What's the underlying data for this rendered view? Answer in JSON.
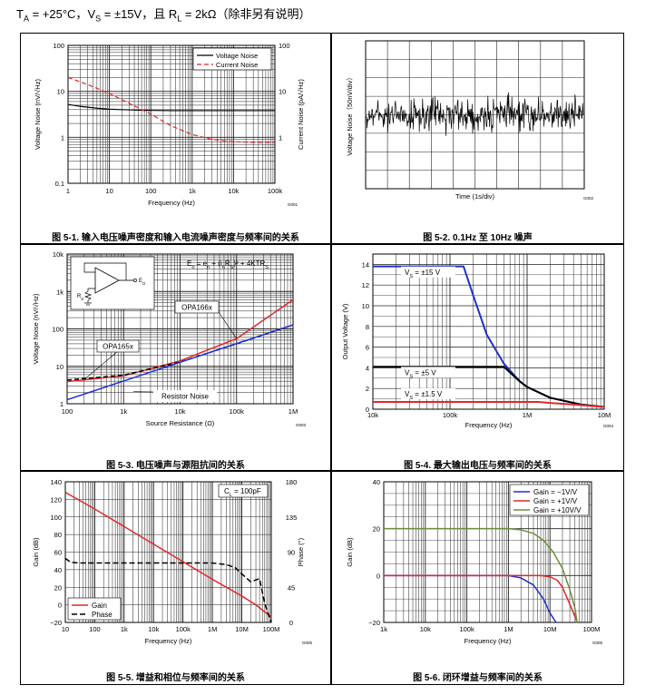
{
  "header": {
    "ta_sym": "T",
    "ta_sub": "A",
    "ta_val": " = +25°C，",
    "vs_sym": "V",
    "vs_sub": "S",
    "vs_val": " = ±15V，且 ",
    "rl_sym": "R",
    "rl_sub": "L",
    "rl_val": " = 2kΩ（除非另有说明）"
  },
  "chart_data": [
    {
      "id": "fig1",
      "type": "line",
      "caption": "图 5-1. 输入电压噪声密度和输入电流噪声密度与频率间的关系",
      "xlabel": "Frequency (Hz)",
      "ylabel": "Voltage Noise (nV/√Hz)",
      "y2label": "Current Noise (pA/√Hz)",
      "xscale": "log",
      "xlim": [
        1,
        100000
      ],
      "yscale": "log",
      "ylim": [
        0.1,
        100
      ],
      "xticks": [
        "1",
        "10",
        "100",
        "1k",
        "10k",
        "100k"
      ],
      "yticks": [
        "0.1",
        "1",
        "10",
        "100"
      ],
      "y2ticks": [
        "1",
        "10",
        "100"
      ],
      "code": "G001",
      "series": [
        {
          "name": "Voltage Noise",
          "color": "#000000",
          "dash": "",
          "x": [
            1,
            2,
            5,
            10,
            20,
            50,
            100,
            300,
            1000,
            10000,
            100000
          ],
          "y": [
            5.2,
            4.7,
            4.3,
            4.1,
            4.0,
            3.9,
            3.85,
            3.8,
            3.8,
            3.8,
            3.8
          ]
        },
        {
          "name": "Current Noise",
          "color": "#e0282a",
          "dash": "5,3",
          "x": [
            1,
            3,
            10,
            30,
            100,
            300,
            1000,
            3000,
            10000,
            30000,
            100000
          ],
          "y": [
            20,
            14,
            9,
            5.5,
            3.2,
            1.8,
            1.15,
            0.9,
            0.8,
            0.78,
            0.78
          ]
        }
      ]
    },
    {
      "id": "fig2",
      "type": "line",
      "caption": "图 5-2. 0.1Hz 至 10Hz 噪声",
      "xlabel": "Time (1s/div)",
      "ylabel": "Voltage Noise（50nV/div）",
      "xlim": [
        0,
        10
      ],
      "ylim": [
        -4,
        4
      ],
      "code": "G002",
      "series": [
        {
          "name": "Noise",
          "color": "#000000",
          "noise_span_x": [
            0,
            10
          ],
          "noise_amplitude_div": 0.8
        }
      ]
    },
    {
      "id": "fig3",
      "type": "line",
      "caption": "图 5-3. 电压噪声与源阻抗间的关系",
      "xlabel": "Source Resistance (Ω)",
      "ylabel": "Voltage Noise (nV/√Hz)",
      "xscale": "log",
      "xlim": [
        100,
        1000000
      ],
      "yscale": "log",
      "ylim": [
        1,
        10000
      ],
      "xticks": [
        "100",
        "1k",
        "10k",
        "100k",
        "1M"
      ],
      "yticks": [
        "1",
        "10",
        "100",
        "1k",
        "10k"
      ],
      "code": "G003",
      "equation": {
        "lead": "E",
        "sub1": "o",
        "mid1": " = e",
        "sub2": "n",
        "mid2": " + (i",
        "sub3": "n",
        "mid3": "R",
        "sub4": "S",
        "tail": ")² + 4KTR",
        "sub5": "S"
      },
      "schematic_labels": {
        "rs": "R",
        "rs_sub": "S",
        "eo": "E",
        "eo_sub": "O"
      },
      "annotations": [
        "OPA166x",
        "OPA165x",
        "Resistor Noise"
      ],
      "series": [
        {
          "name": "OPA166x",
          "color": "#e0282a",
          "dash": "",
          "x": [
            100,
            1000,
            10000,
            100000,
            1000000
          ],
          "y": [
            3.9,
            5.6,
            14,
            55,
            600
          ]
        },
        {
          "name": "OPA165x",
          "color": "#000000",
          "dash": "5,3",
          "x": [
            100,
            1000,
            10000,
            100000,
            1000000
          ],
          "y": [
            4.3,
            5.8,
            13,
            40,
            128
          ]
        },
        {
          "name": "Resistor Noise",
          "color": "#1f2fd0",
          "dash": "",
          "x": [
            100,
            1000000
          ],
          "y": [
            1.28,
            128
          ]
        }
      ]
    },
    {
      "id": "fig4",
      "type": "line",
      "caption": "图 5-4. 最大输出电压与频率间的关系",
      "xlabel": "Frequency (Hz)",
      "ylabel": "Output Voltage (V)",
      "xscale": "log",
      "xlim": [
        10000,
        10000000
      ],
      "ylim": [
        0,
        15
      ],
      "xticks": [
        "10k",
        "100k",
        "1M",
        "10M"
      ],
      "yticks": [
        "0",
        "2",
        "4",
        "6",
        "8",
        "10",
        "12",
        "14"
      ],
      "code": "G004",
      "series": [
        {
          "name": "VS = ±15 V",
          "color": "#1f2fd0",
          "x": [
            10000,
            150000,
            200000,
            300000,
            500000,
            800000,
            1000000,
            2000000,
            5000000,
            10000000
          ],
          "y": [
            13.8,
            13.8,
            11,
            7.2,
            4.4,
            2.7,
            2.15,
            1.1,
            0.45,
            0.22
          ]
        },
        {
          "name": "VS = ±5 V",
          "color": "#000000",
          "x": [
            10000,
            500000,
            800000,
            1000000,
            2000000,
            5000000,
            10000000
          ],
          "y": [
            4.1,
            4.1,
            2.7,
            2.15,
            1.1,
            0.45,
            0.22
          ]
        },
        {
          "name": "VS = ±1.5 V",
          "color": "#e0282a",
          "x": [
            10000,
            1400000,
            2000000,
            5000000,
            10000000
          ],
          "y": [
            0.7,
            0.7,
            0.6,
            0.4,
            0.22
          ]
        }
      ],
      "labels": [
        {
          "sym": "V",
          "sub": "S",
          "text": " = ±15 V"
        },
        {
          "sym": "V",
          "sub": "S",
          "text": " = ±5 V"
        },
        {
          "sym": "V",
          "sub": "S",
          "text": " = ±1.5 V"
        }
      ]
    },
    {
      "id": "fig5",
      "type": "line",
      "caption": "图 5-5. 增益和相位与频率间的关系",
      "xlabel": "Frequency (Hz)",
      "ylabel": "Gain (dB)",
      "y2label": "Phase (°)",
      "xscale": "log",
      "xlim": [
        10,
        100000000
      ],
      "ylim": [
        -20,
        140
      ],
      "y2lim": [
        0,
        180
      ],
      "xticks": [
        "10",
        "100",
        "1k",
        "10k",
        "100k",
        "1M",
        "10M",
        "100M"
      ],
      "yticks": [
        "−20",
        "0",
        "20",
        "40",
        "60",
        "80",
        "100",
        "120",
        "140"
      ],
      "y2ticks": [
        "0",
        "45",
        "90",
        "135",
        "180"
      ],
      "code": "G005",
      "note": {
        "sym": "C",
        "sub": "L",
        "text": " = 100pF"
      },
      "series": [
        {
          "name": "Gain",
          "color": "#e0282a",
          "dash": "",
          "x": [
            10,
            100,
            1000,
            10000,
            100000,
            1000000,
            10000000,
            30000000,
            100000000
          ],
          "y": [
            128,
            109,
            89,
            69,
            49,
            29,
            10,
            0,
            -14
          ]
        },
        {
          "name": "Phase",
          "color": "#000000",
          "dash": "6,3",
          "axis": "y2",
          "x": [
            10,
            15,
            30,
            100,
            1000,
            100000,
            1000000,
            3000000,
            6000000,
            10000000,
            20000000,
            40000000,
            60000000,
            100000000
          ],
          "y": [
            82,
            77,
            76,
            76,
            76,
            76,
            76,
            74,
            70,
            62,
            52,
            56,
            24,
            0
          ]
        }
      ]
    },
    {
      "id": "fig6",
      "type": "line",
      "caption": "图 5-6. 闭环增益与频率间的关系",
      "xlabel": "Frequency (Hz)",
      "ylabel": "Gain (dB)",
      "xscale": "log",
      "xlim": [
        1000,
        100000000
      ],
      "ylim": [
        -20,
        40
      ],
      "xticks": [
        "1k",
        "10k",
        "100k",
        "1M",
        "10M",
        "100M"
      ],
      "yticks": [
        "−20",
        "0",
        "20",
        "40"
      ],
      "code": "G006",
      "series": [
        {
          "name": "Gain = −1V/V",
          "color": "#1f2fd0",
          "x": [
            1000,
            1000000,
            2000000,
            4000000,
            7000000,
            10000000,
            14000000
          ],
          "y": [
            0,
            0,
            -1,
            -4,
            -10,
            -16,
            -20
          ]
        },
        {
          "name": "Gain = +1V/V",
          "color": "#e0282a",
          "x": [
            1000,
            6000000,
            10000000,
            15000000,
            20000000,
            25000000,
            35000000,
            45000000
          ],
          "y": [
            0,
            0,
            -0.5,
            -2,
            -5,
            -9,
            -15,
            -20
          ]
        },
        {
          "name": "Gain = +10V/V",
          "color": "#6b8f3a",
          "x": [
            1000,
            1000000,
            2000000,
            4000000,
            7000000,
            12000000,
            20000000,
            30000000,
            40000000,
            45000000
          ],
          "y": [
            20,
            20,
            19.5,
            18,
            15,
            10,
            3,
            -6,
            -14,
            -20
          ]
        }
      ]
    }
  ]
}
